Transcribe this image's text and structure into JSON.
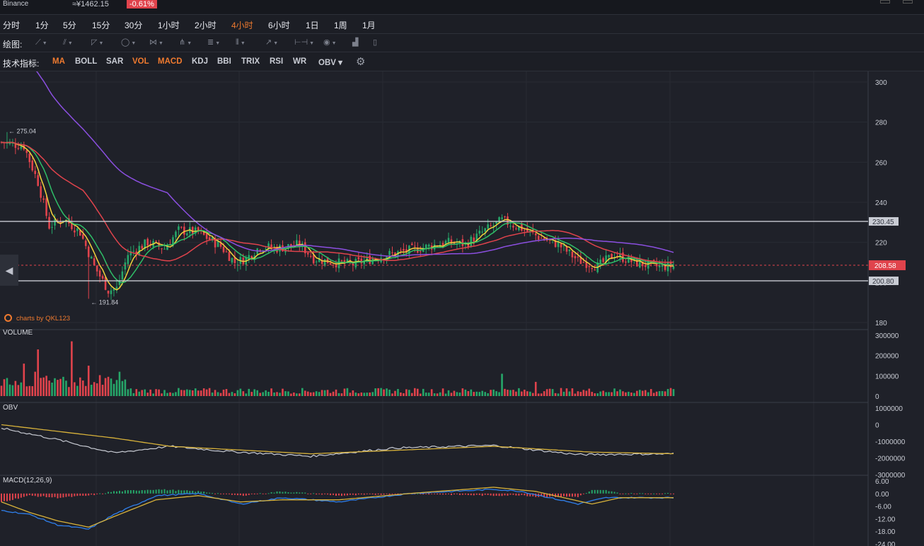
{
  "header": {
    "exchange": "Binance",
    "price": "≈¥1462.15",
    "change": "-0.61%"
  },
  "intervals": [
    {
      "label": "分时",
      "active": false
    },
    {
      "label": "1分",
      "active": false
    },
    {
      "label": "5分",
      "active": false
    },
    {
      "label": "15分",
      "active": false
    },
    {
      "label": "30分",
      "active": false
    },
    {
      "label": "1小时",
      "active": false
    },
    {
      "label": "2小时",
      "active": false
    },
    {
      "label": "4小时",
      "active": true
    },
    {
      "label": "6小时",
      "active": false
    },
    {
      "label": "1日",
      "active": false
    },
    {
      "label": "1周",
      "active": false
    },
    {
      "label": "1月",
      "active": false
    }
  ],
  "drawing": {
    "label": "绘图:",
    "tools": [
      {
        "icon": "trend-line-icon"
      },
      {
        "icon": "parallel-line-icon"
      },
      {
        "icon": "fibonacci-icon"
      },
      {
        "icon": "shape-circle-icon"
      },
      {
        "icon": "pattern-icon"
      },
      {
        "icon": "pitchfork-icon"
      },
      {
        "icon": "text-lines-icon"
      },
      {
        "icon": "vertical-lines-icon"
      },
      {
        "icon": "arrow-icon"
      },
      {
        "icon": "measure-icon"
      },
      {
        "icon": "eye-icon"
      },
      {
        "icon": "bar-chart-icon"
      },
      {
        "icon": "trash-icon"
      }
    ]
  },
  "indicators_bar": {
    "label": "技术指标:",
    "items": [
      {
        "label": "MA",
        "active": true
      },
      {
        "label": "BOLL",
        "active": false
      },
      {
        "label": "SAR",
        "active": false
      },
      {
        "label": "VOL",
        "active": true
      },
      {
        "label": "MACD",
        "active": true
      },
      {
        "label": "KDJ",
        "active": false
      },
      {
        "label": "BBI",
        "active": false
      },
      {
        "label": "TRIX",
        "active": false
      },
      {
        "label": "RSI",
        "active": false
      },
      {
        "label": "WR",
        "active": false
      },
      {
        "label": "OBV",
        "active": false
      }
    ],
    "settings_icon": "gear-icon"
  },
  "watermark": "charts by QKL123",
  "colors": {
    "up": "#26a669",
    "down": "#e0434c",
    "ma5": "#f2d43d",
    "ma10": "#2fbf68",
    "ma30": "#e0434c",
    "ma60": "#8b4fe0",
    "obv": "#c9ccd4",
    "obv_ma": "#d8b23a",
    "dif": "#2f80ed",
    "dea": "#d8b23a",
    "accent": "#ef7a2f"
  },
  "chart_data": [
    {
      "panel": "price",
      "type": "candlestick",
      "ylim": [
        180,
        300
      ],
      "yticks": [
        "300",
        "280",
        "260",
        "240",
        "220",
        "200",
        "180"
      ],
      "annotations": {
        "high": "275.04",
        "low": "191.84"
      },
      "lines": [
        {
          "label": "230.45",
          "value": 230.45
        },
        {
          "label": "200.80",
          "value": 200.8
        },
        {
          "label": "208.58",
          "value": 208.58,
          "current": true
        }
      ],
      "series": [
        {
          "name": "MA5",
          "color_key": "ma5"
        },
        {
          "name": "MA10",
          "color_key": "ma10"
        },
        {
          "name": "MA30",
          "color_key": "ma30"
        },
        {
          "name": "MA60",
          "color_key": "ma60"
        }
      ],
      "price_keyframes": [
        [
          0,
          270
        ],
        [
          8,
          268
        ],
        [
          13,
          250
        ],
        [
          17,
          228
        ],
        [
          22,
          232
        ],
        [
          28,
          225
        ],
        [
          33,
          208
        ],
        [
          38,
          196
        ],
        [
          41,
          197
        ],
        [
          45,
          214
        ],
        [
          52,
          220
        ],
        [
          58,
          217
        ],
        [
          63,
          226
        ],
        [
          70,
          225
        ],
        [
          78,
          218
        ],
        [
          83,
          210
        ],
        [
          87,
          212
        ],
        [
          92,
          218
        ],
        [
          98,
          217
        ],
        [
          106,
          219
        ],
        [
          111,
          212
        ],
        [
          118,
          210
        ],
        [
          125,
          209
        ],
        [
          132,
          212
        ],
        [
          138,
          214
        ],
        [
          145,
          216
        ],
        [
          152,
          218
        ],
        [
          158,
          220
        ],
        [
          165,
          219
        ],
        [
          172,
          226
        ],
        [
          178,
          231
        ],
        [
          185,
          227
        ],
        [
          192,
          222
        ],
        [
          198,
          219
        ],
        [
          205,
          211
        ],
        [
          212,
          208
        ],
        [
          218,
          214
        ],
        [
          225,
          210
        ],
        [
          232,
          208
        ],
        [
          240,
          208
        ]
      ]
    },
    {
      "panel": "volume",
      "type": "bar",
      "title": "VOLUME",
      "ylim": [
        0,
        300000
      ],
      "yticks": [
        "300000",
        "200000",
        "100000",
        "0"
      ],
      "spikes": [
        [
          8,
          160000
        ],
        [
          12,
          120000
        ],
        [
          13,
          230000
        ],
        [
          16,
          100000
        ],
        [
          25,
          270000
        ],
        [
          31,
          150000
        ],
        [
          42,
          120000
        ],
        [
          178,
          110000
        ],
        [
          190,
          70000
        ]
      ]
    },
    {
      "panel": "obv",
      "type": "line",
      "title": "OBV",
      "ylim": [
        -3000000,
        1000000
      ],
      "yticks": [
        "1000000",
        "0",
        "-1000000",
        "-2000000",
        "-3000000"
      ],
      "obv_keyframes": [
        [
          0,
          -200000
        ],
        [
          20,
          -900000
        ],
        [
          40,
          -1700000
        ],
        [
          60,
          -1300000
        ],
        [
          80,
          -1600000
        ],
        [
          110,
          -1900000
        ],
        [
          140,
          -1400000
        ],
        [
          175,
          -1250000
        ],
        [
          205,
          -1800000
        ],
        [
          240,
          -1750000
        ]
      ],
      "obv_ma_keyframes": [
        [
          0,
          0
        ],
        [
          40,
          -800000
        ],
        [
          60,
          -1300000
        ],
        [
          110,
          -1750000
        ],
        [
          175,
          -1300000
        ],
        [
          210,
          -1650000
        ],
        [
          240,
          -1750000
        ]
      ]
    },
    {
      "panel": "macd",
      "type": "line",
      "title": "MACD(12,26,9)",
      "ylim": [
        -24,
        6
      ],
      "yticks": [
        "6.00",
        "0.00",
        "-6.00",
        "-12.00",
        "-18.00",
        "-24.00"
      ],
      "dif_keyframes": [
        [
          0,
          -8
        ],
        [
          10,
          -10
        ],
        [
          20,
          -15
        ],
        [
          31,
          -17
        ],
        [
          40,
          -10
        ],
        [
          55,
          -1
        ],
        [
          70,
          0
        ],
        [
          85,
          -5
        ],
        [
          100,
          -2
        ],
        [
          120,
          -4
        ],
        [
          145,
          0
        ],
        [
          175,
          2
        ],
        [
          185,
          1
        ],
        [
          205,
          -5
        ],
        [
          215,
          -2
        ],
        [
          240,
          -2
        ]
      ],
      "dea_keyframes": [
        [
          0,
          -4
        ],
        [
          10,
          -9
        ],
        [
          20,
          -13
        ],
        [
          31,
          -16
        ],
        [
          40,
          -11
        ],
        [
          55,
          -3
        ],
        [
          70,
          -1
        ],
        [
          85,
          -4
        ],
        [
          100,
          -3
        ],
        [
          120,
          -3
        ],
        [
          145,
          0
        ],
        [
          175,
          3
        ],
        [
          190,
          1
        ],
        [
          210,
          -5
        ],
        [
          220,
          -2
        ],
        [
          240,
          -2
        ]
      ]
    }
  ]
}
